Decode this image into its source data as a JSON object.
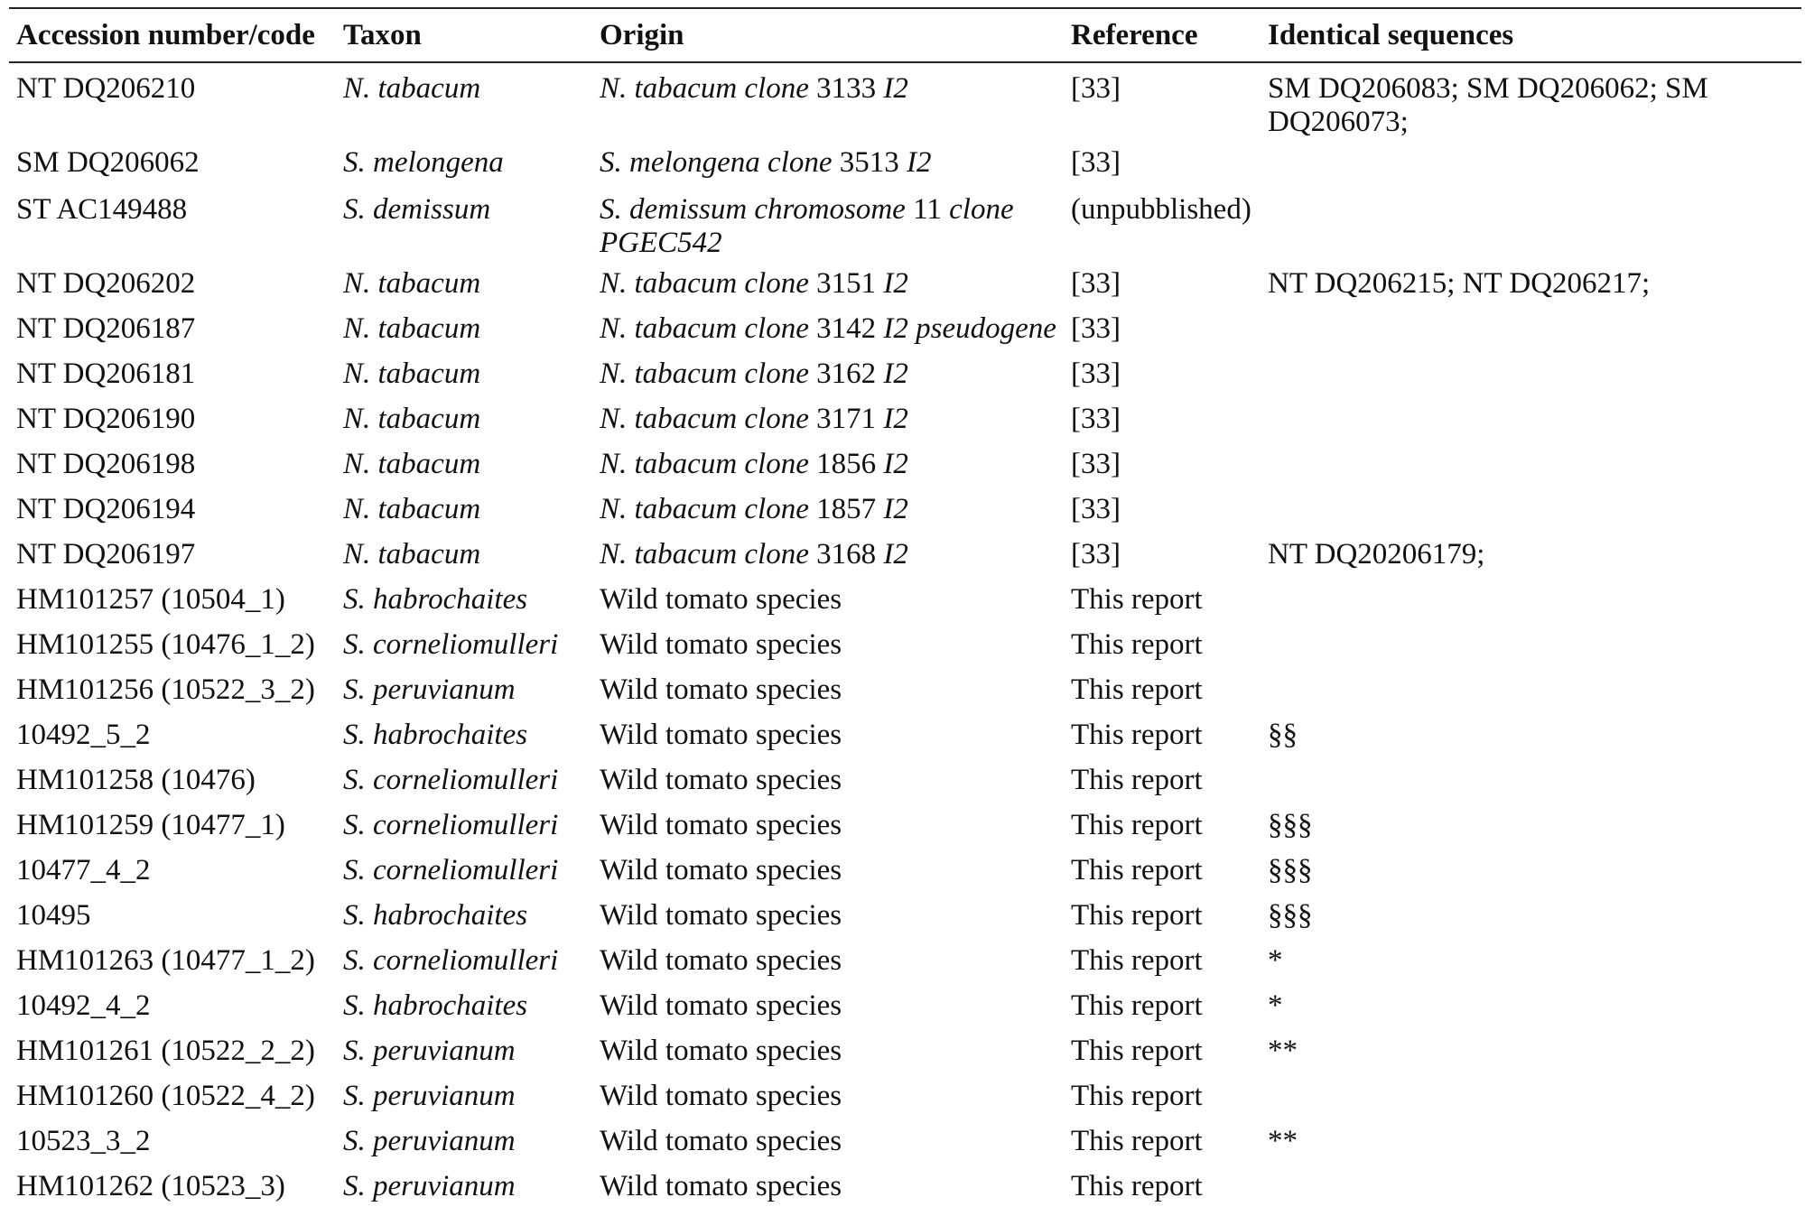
{
  "table": {
    "headers": [
      "Accession number/code",
      "Taxon",
      "Origin",
      "Reference",
      "Identical sequences"
    ],
    "rows": [
      {
        "accession": "NT DQ206210",
        "taxon": "N. tabacum",
        "origin_italic": "N. tabacum clone",
        "origin_num": "3133",
        "origin_suffix": "I2",
        "reference": "[33]",
        "identical": "SM DQ206083; SM DQ206062; SM DQ206073;"
      },
      {
        "accession": "SM DQ206062",
        "taxon": "S. melongena",
        "origin_italic": "S. melongena clone",
        "origin_num": "3513",
        "origin_suffix": "I2",
        "reference": "[33]",
        "identical": ""
      },
      {
        "accession": "ST AC149488",
        "taxon": "S. demissum",
        "origin_italic": "S. demissum chromosome",
        "origin_num": "11",
        "origin_suffix": "clone PGEC542",
        "reference": "(unpubblished)",
        "identical": ""
      },
      {
        "accession": "NT DQ206202",
        "taxon": "N. tabacum",
        "origin_italic": "N. tabacum clone",
        "origin_num": "3151",
        "origin_suffix": "I2",
        "reference": "[33]",
        "identical": "NT DQ206215; NT DQ206217;"
      },
      {
        "accession": "NT DQ206187",
        "taxon": "N. tabacum",
        "origin_italic": "N. tabacum clone",
        "origin_num": "3142",
        "origin_suffix": "I2 pseudogene",
        "reference": "[33]",
        "identical": ""
      },
      {
        "accession": "NT DQ206181",
        "taxon": "N. tabacum",
        "origin_italic": "N. tabacum clone",
        "origin_num": "3162",
        "origin_suffix": "I2",
        "reference": "[33]",
        "identical": ""
      },
      {
        "accession": "NT DQ206190",
        "taxon": "N. tabacum",
        "origin_italic": "N. tabacum clone",
        "origin_num": "3171",
        "origin_suffix": "I2",
        "reference": "[33]",
        "identical": ""
      },
      {
        "accession": "NT DQ206198",
        "taxon": "N. tabacum",
        "origin_italic": "N. tabacum clone",
        "origin_num": "1856",
        "origin_suffix": "I2",
        "reference": "[33]",
        "identical": ""
      },
      {
        "accession": "NT DQ206194",
        "taxon": "N. tabacum",
        "origin_italic": "N. tabacum clone",
        "origin_num": "1857",
        "origin_suffix": "I2",
        "reference": "[33]",
        "identical": ""
      },
      {
        "accession": "NT DQ206197",
        "taxon": "N. tabacum",
        "origin_italic": "N. tabacum clone",
        "origin_num": "3168",
        "origin_suffix": "I2",
        "reference": "[33]",
        "identical": "NT DQ20206179;"
      },
      {
        "accession": "HM101257 (10504_1)",
        "taxon": "S. habrochaites",
        "origin": "Wild tomato species",
        "reference": "This report",
        "identical": ""
      },
      {
        "accession": "HM101255 (10476_1_2)",
        "taxon": "S. corneliomulleri",
        "origin": "Wild tomato species",
        "reference": "This report",
        "identical": ""
      },
      {
        "accession": "HM101256 (10522_3_2)",
        "taxon": "S. peruvianum",
        "origin": "Wild tomato species",
        "reference": "This report",
        "identical": ""
      },
      {
        "accession": "10492_5_2",
        "taxon": "S. habrochaites",
        "origin": "Wild tomato species",
        "reference": "This report",
        "identical": "§§"
      },
      {
        "accession": "HM101258 (10476)",
        "taxon": "S. corneliomulleri",
        "origin": "Wild tomato species",
        "reference": "This report",
        "identical": ""
      },
      {
        "accession": "HM101259 (10477_1)",
        "taxon": "S. corneliomulleri",
        "origin": "Wild tomato species",
        "reference": "This report",
        "identical": "§§§"
      },
      {
        "accession": "10477_4_2",
        "taxon": "S. corneliomulleri",
        "origin": "Wild tomato species",
        "reference": "This report",
        "identical": "§§§"
      },
      {
        "accession": "10495",
        "taxon": "S. habrochaites",
        "origin": "Wild tomato species",
        "reference": "This report",
        "identical": "§§§"
      },
      {
        "accession": "HM101263 (10477_1_2)",
        "taxon": "S. corneliomulleri",
        "origin": "Wild tomato species",
        "reference": "This report",
        "identical": "*"
      },
      {
        "accession": "10492_4_2",
        "taxon": "S. habrochaites",
        "origin": "Wild tomato species",
        "reference": "This report",
        "identical": "*"
      },
      {
        "accession": "HM101261 (10522_2_2)",
        "taxon": "S. peruvianum",
        "origin": "Wild tomato species",
        "reference": "This report",
        "identical": "**"
      },
      {
        "accession": "HM101260 (10522_4_2)",
        "taxon": "S. peruvianum",
        "origin": "Wild tomato species",
        "reference": "This report",
        "identical": ""
      },
      {
        "accession": "10523_3_2",
        "taxon": "S. peruvianum",
        "origin": "Wild tomato species",
        "reference": "This report",
        "identical": "**"
      },
      {
        "accession": "HM101262 (10523_3)",
        "taxon": "S. peruvianum",
        "origin": "Wild tomato species",
        "reference": "This report",
        "identical": ""
      }
    ]
  }
}
